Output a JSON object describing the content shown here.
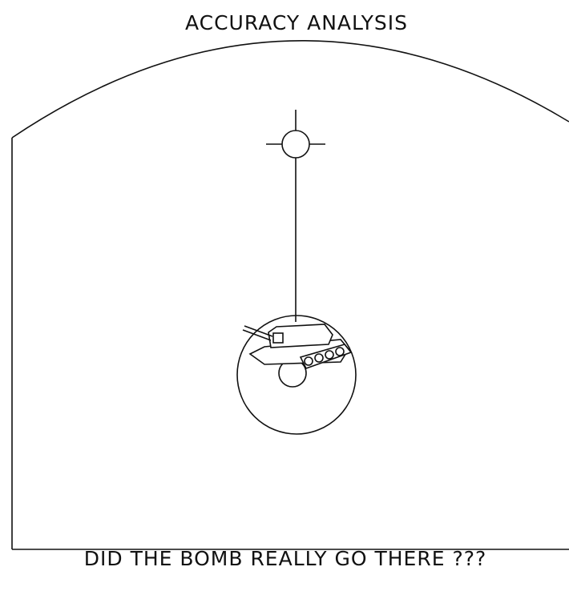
{
  "title": "ACCURACY ANALYSIS",
  "caption": "DID THE BOMB REALLY GO THERE ???"
}
